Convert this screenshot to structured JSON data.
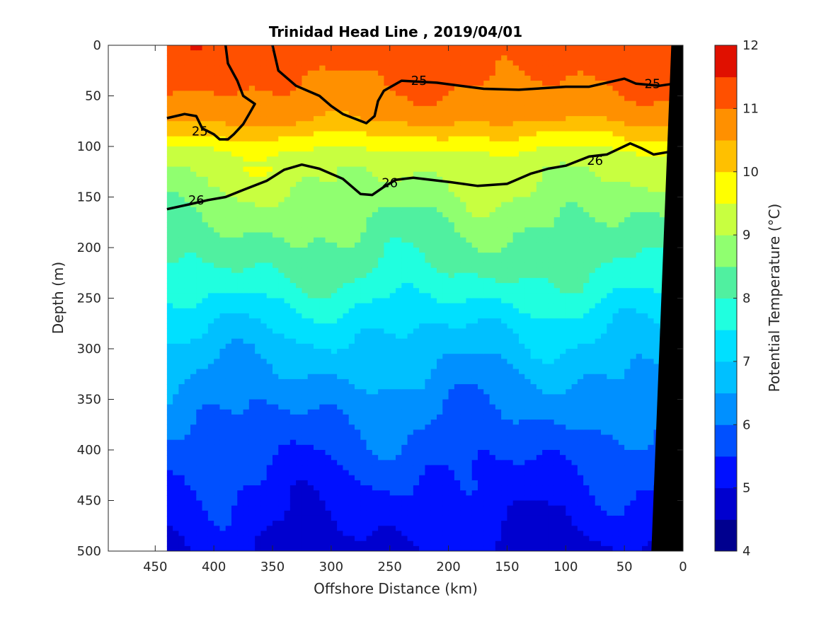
{
  "chart_data": {
    "type": "heatmap",
    "title": "Trinidad Head Line , 2019/04/01",
    "xlabel": "Offshore Distance (km)",
    "ylabel": "Depth (m)",
    "colorbar_label": "Potential Temperature (°C)",
    "xlim": [
      490,
      0
    ],
    "ylim": [
      0,
      500
    ],
    "x_reversed": true,
    "y_reversed": true,
    "xticks": [
      450,
      400,
      350,
      300,
      250,
      200,
      150,
      100,
      50,
      0
    ],
    "yticks": [
      0,
      50,
      100,
      150,
      200,
      250,
      300,
      350,
      400,
      450,
      500
    ],
    "colorbar_ticks": [
      4,
      5,
      6,
      7,
      8,
      9,
      10,
      11,
      12
    ],
    "colorbar_levels": [
      4,
      4.5,
      5,
      5.5,
      6,
      6.5,
      7,
      7.5,
      8,
      8.5,
      9,
      9.5,
      10,
      10.5,
      11,
      11.5,
      12
    ],
    "colormap": [
      "#00008f",
      "#0000cf",
      "#0010ff",
      "#0050ff",
      "#0090ff",
      "#00c0ff",
      "#00e0ff",
      "#20ffdf",
      "#50f0a0",
      "#90ff70",
      "#c8ff40",
      "#ffff00",
      "#ffc000",
      "#ff9000",
      "#ff5000",
      "#e01000",
      "#a00000"
    ],
    "data_x_range": [
      440,
      0
    ],
    "temperature_profile": [
      {
        "depth": 0,
        "temp": 11.3
      },
      {
        "depth": 40,
        "temp": 11.0
      },
      {
        "depth": 70,
        "temp": 10.7
      },
      {
        "depth": 90,
        "temp": 10.0
      },
      {
        "depth": 110,
        "temp": 9.3
      },
      {
        "depth": 140,
        "temp": 9.0
      },
      {
        "depth": 170,
        "temp": 8.6
      },
      {
        "depth": 210,
        "temp": 8.2
      },
      {
        "depth": 240,
        "temp": 7.8
      },
      {
        "depth": 270,
        "temp": 7.2
      },
      {
        "depth": 300,
        "temp": 6.8
      },
      {
        "depth": 340,
        "temp": 6.3
      },
      {
        "depth": 380,
        "temp": 5.9
      },
      {
        "depth": 420,
        "temp": 5.5
      },
      {
        "depth": 460,
        "temp": 5.2
      },
      {
        "depth": 500,
        "temp": 4.9
      }
    ],
    "contours": [
      {
        "level": "25",
        "bold": true,
        "points": [
          [
            440,
            72
          ],
          [
            425,
            68
          ],
          [
            415,
            70
          ],
          [
            410,
            82
          ],
          [
            400,
            88
          ],
          [
            395,
            93
          ],
          [
            388,
            93
          ],
          [
            383,
            88
          ],
          [
            375,
            78
          ],
          [
            370,
            68
          ],
          [
            365,
            58
          ],
          [
            375,
            50
          ],
          [
            380,
            35
          ],
          [
            388,
            18
          ],
          [
            390,
            0
          ]
        ]
      },
      {
        "level": "25",
        "bold": true,
        "points": [
          [
            350,
            0
          ],
          [
            345,
            25
          ],
          [
            330,
            40
          ],
          [
            310,
            50
          ],
          [
            300,
            60
          ],
          [
            290,
            68
          ],
          [
            270,
            77
          ],
          [
            263,
            70
          ],
          [
            260,
            55
          ],
          [
            255,
            45
          ],
          [
            240,
            35
          ],
          [
            210,
            37
          ],
          [
            170,
            43
          ],
          [
            140,
            44
          ],
          [
            100,
            41
          ],
          [
            80,
            41
          ],
          [
            50,
            33
          ],
          [
            40,
            38
          ],
          [
            20,
            40
          ],
          [
            8,
            38
          ]
        ]
      },
      {
        "level": "26",
        "bold": true,
        "points": [
          [
            440,
            162
          ],
          [
            420,
            157
          ],
          [
            405,
            153
          ],
          [
            390,
            150
          ],
          [
            375,
            143
          ],
          [
            355,
            134
          ],
          [
            340,
            123
          ],
          [
            325,
            118
          ],
          [
            310,
            122
          ],
          [
            290,
            132
          ],
          [
            275,
            147
          ],
          [
            265,
            148
          ],
          [
            255,
            140
          ],
          [
            245,
            133
          ],
          [
            230,
            131
          ],
          [
            200,
            135
          ],
          [
            175,
            139
          ],
          [
            150,
            137
          ],
          [
            130,
            127
          ],
          [
            115,
            122
          ],
          [
            100,
            119
          ],
          [
            80,
            110
          ],
          [
            65,
            108
          ],
          [
            45,
            97
          ],
          [
            35,
            102
          ],
          [
            25,
            108
          ],
          [
            10,
            105
          ]
        ]
      }
    ],
    "contour_labels": [
      {
        "text": "25",
        "x": 412,
        "depth": 85
      },
      {
        "text": "25",
        "x": 225,
        "depth": 35
      },
      {
        "text": "25",
        "x": 26,
        "depth": 38
      },
      {
        "text": "26",
        "x": 415,
        "depth": 153
      },
      {
        "text": "26",
        "x": 250,
        "depth": 136
      },
      {
        "text": "26",
        "x": 75,
        "depth": 114
      }
    ],
    "bathymetry_black": [
      [
        10,
        0
      ],
      [
        27,
        500
      ],
      [
        0,
        500
      ],
      [
        0,
        0
      ]
    ]
  }
}
